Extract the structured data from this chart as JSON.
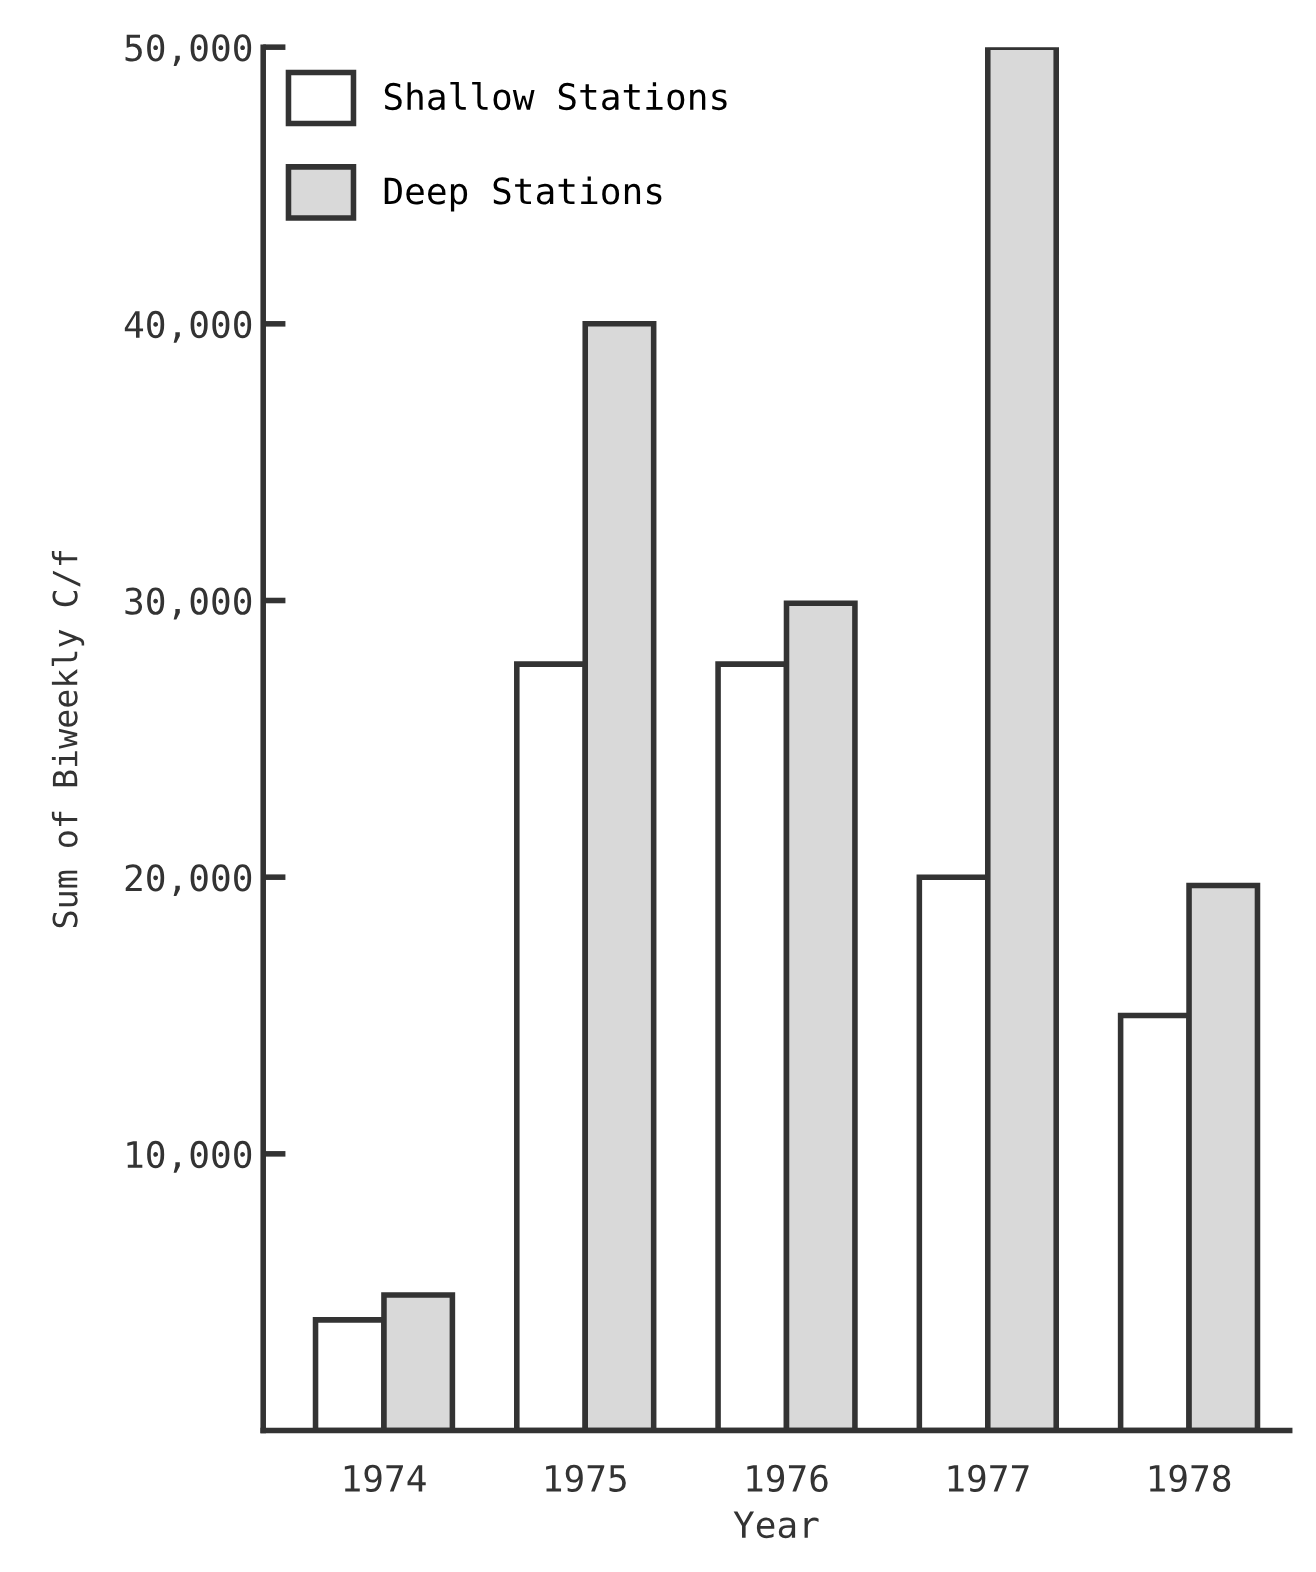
{
  "chart_data": {
    "type": "bar",
    "xlabel": "Year",
    "ylabel": "Sum of Biweekly C/f",
    "categories": [
      "1974",
      "1975",
      "1976",
      "1977",
      "1978"
    ],
    "series": [
      {
        "name": "Shallow Stations",
        "color": "#ffffff",
        "values": [
          4000,
          27700,
          27700,
          20000,
          15000
        ]
      },
      {
        "name": "Deep Stations",
        "color": "#d9d9d9",
        "values": [
          4900,
          40000,
          29900,
          50000,
          19700
        ]
      }
    ],
    "ylim": [
      0,
      50000
    ],
    "yticks": [
      {
        "value": 10000,
        "label": "10,000"
      },
      {
        "value": 20000,
        "label": "20,000"
      },
      {
        "value": 30000,
        "label": "30,000"
      },
      {
        "value": 40000,
        "label": "40,000"
      },
      {
        "value": 50000,
        "label": "50,000"
      }
    ],
    "grid": false,
    "legend": "top left"
  }
}
